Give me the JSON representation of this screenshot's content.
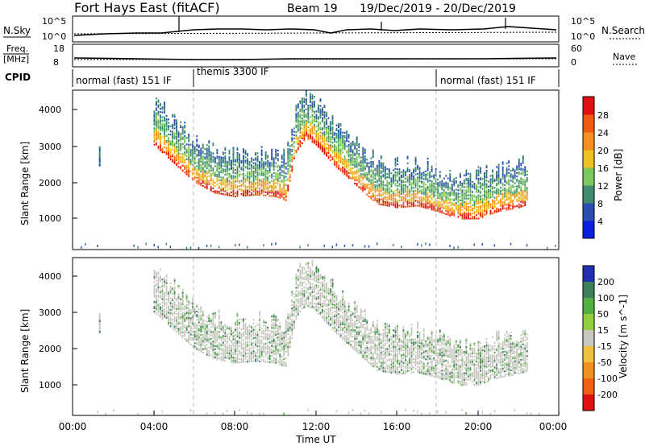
{
  "header": {
    "station": "Fort Hays East (fitACF)",
    "beam": "Beam 19",
    "dates": "19/Dec/2019 - 20/Dec/2019"
  },
  "panels": {
    "sky_label": "N.Sky",
    "sky_ticks": [
      "10^5",
      "10^0"
    ],
    "search_label": "N.Search",
    "search_ticks": [
      "10^5",
      "10^0"
    ],
    "freq_label": "Freq.",
    "freq_unit": "[MHz]",
    "freq_ticks": [
      "18",
      "8"
    ],
    "nave_label": "Nave",
    "nave_ticks": [
      "60",
      "0"
    ],
    "cpid_label": "CPID",
    "cpid_segments": [
      {
        "label": "normal (fast) 151 IF",
        "start": 0,
        "end": 6
      },
      {
        "label": "themis 3300 IF",
        "start": 6,
        "end": 18
      },
      {
        "label": "normal (fast) 151 IF",
        "start": 18,
        "end": 24
      }
    ]
  },
  "axes": {
    "x_label": "Time UT",
    "x_ticks": [
      "00:00",
      "04:00",
      "08:00",
      "12:00",
      "16:00",
      "20:00",
      "00:00"
    ],
    "y_label": "Slant Range [km]",
    "y_ticks": [
      "1000",
      "2000",
      "3000",
      "4000"
    ]
  },
  "colorbars": {
    "power": {
      "label": "Power [dB]",
      "ticks": [
        "4",
        "8",
        "12",
        "16",
        "20",
        "24",
        "28"
      ],
      "colors": [
        "#0a1ee0",
        "#2b4fb0",
        "#3f8d6e",
        "#7cc85a",
        "#f0c020",
        "#f59020",
        "#f05a10",
        "#e01010"
      ]
    },
    "velocity": {
      "label": "Velocity [m s^-1]",
      "ticks": [
        "200",
        "100",
        "50",
        "15",
        "-15",
        "-50",
        "-100",
        "-200"
      ],
      "colors": [
        "#2030b0",
        "#3f7f5a",
        "#50b040",
        "#90d040",
        "#c8c8c0",
        "#f0c040",
        "#f09020",
        "#f06010",
        "#e01010"
      ]
    }
  },
  "chart_data": [
    {
      "type": "heatmap",
      "name": "Power",
      "x_range_hours": [
        0,
        24
      ],
      "y_range_km": [
        180,
        4500
      ],
      "echo_band_lower_edge": {
        "x_hours": [
          4,
          5,
          6,
          7,
          8,
          9,
          10,
          10.5,
          11,
          11.5,
          12,
          13,
          14,
          15,
          16,
          17,
          18,
          19,
          20,
          21,
          22,
          22.5
        ],
        "range_km": [
          3000,
          2500,
          2000,
          1700,
          1600,
          1650,
          1600,
          1500,
          2800,
          3200,
          3000,
          2400,
          1900,
          1400,
          1300,
          1350,
          1200,
          1000,
          1000,
          1200,
          1300,
          1400
        ]
      },
      "ground_scatter_range_km": 250
    },
    {
      "type": "heatmap",
      "name": "Velocity",
      "x_range_hours": [
        0,
        24
      ],
      "y_range_km": [
        180,
        4500
      ],
      "dominant_velocity_bin": "15 to -15"
    }
  ]
}
